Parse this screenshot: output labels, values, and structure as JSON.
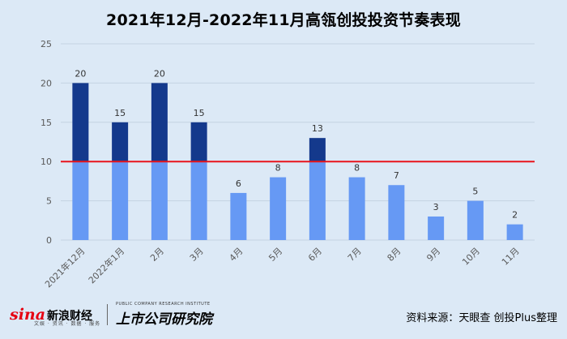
{
  "title": "2021年12月-2022年11月高瓴创投投资节奏表现",
  "chart_data": {
    "type": "bar",
    "categories": [
      "2021年12月",
      "2022年1月",
      "2月",
      "3月",
      "4月",
      "5月",
      "6月",
      "7月",
      "8月",
      "9月",
      "10月",
      "11月"
    ],
    "values": [
      20,
      15,
      20,
      15,
      6,
      8,
      13,
      8,
      7,
      3,
      5,
      2
    ],
    "ylim": [
      0,
      25
    ],
    "yticks": [
      0,
      5,
      10,
      15,
      20,
      25
    ],
    "reference_line": 10,
    "colors": {
      "below": "#6699f4",
      "above": "#14398c",
      "reference": "#e8141b",
      "grid": "#c4d3e2"
    }
  },
  "footer": {
    "sina_logo": "sina",
    "sina_name": "新浪财经",
    "sina_sub": "文娱 · 资讯 · 数据 · 服务",
    "institute_small": "PUBLIC COMPANY RESEARCH INSTITUTE",
    "institute_name": "上市公司研究院",
    "source": "资料来源：天眼查 创投Plus整理"
  }
}
